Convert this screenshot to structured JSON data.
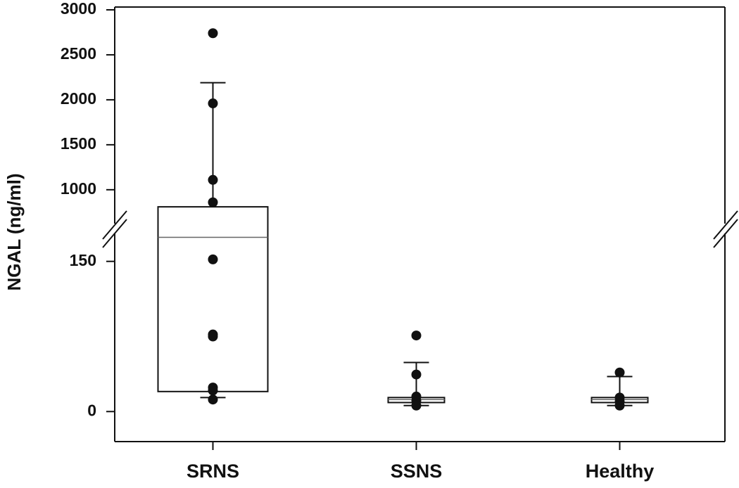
{
  "chart_data": {
    "type": "box",
    "y_label": "NGAL (ng/ml)",
    "y_segments": [
      {
        "ylim": [
          -30,
          180
        ],
        "yticks": [
          0,
          150
        ]
      },
      {
        "ylim": [
          600,
          3000
        ],
        "yticks": [
          1000,
          1500,
          2000,
          2500,
          3000
        ]
      }
    ],
    "categories": [
      "SRNS",
      "SSNS",
      "Healthy"
    ],
    "boxes": [
      {
        "whislo": 14,
        "q1": 20,
        "median": 174,
        "q3": 810,
        "whishi": 2190,
        "points": [
          2740,
          1960,
          1110,
          860,
          152,
          77,
          75,
          24,
          21,
          12
        ]
      },
      {
        "whislo": 6,
        "q1": 9,
        "median": 12,
        "q3": 14,
        "whishi": 49,
        "points": [
          76,
          37,
          15,
          11,
          6
        ]
      },
      {
        "whislo": 6,
        "q1": 9,
        "median": 12,
        "q3": 14,
        "whishi": 35,
        "points": [
          39,
          14,
          10,
          6
        ]
      }
    ],
    "color": "#111111"
  }
}
